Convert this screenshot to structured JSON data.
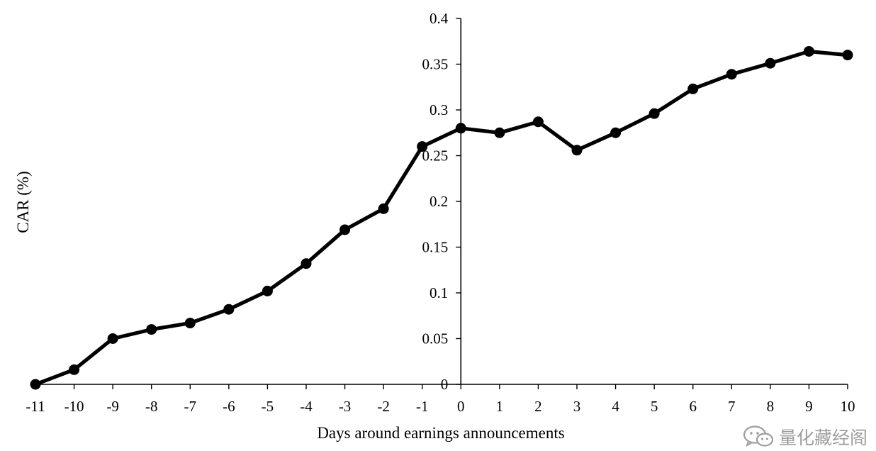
{
  "chart_data": {
    "type": "line",
    "title": "",
    "xlabel": "Days around earnings announcements",
    "ylabel": "CAR (%)",
    "x": [
      -11,
      -10,
      -9,
      -8,
      -7,
      -6,
      -5,
      -4,
      -3,
      -2,
      -1,
      0,
      1,
      2,
      3,
      4,
      5,
      6,
      7,
      8,
      9,
      10
    ],
    "x_tick_labels": [
      "-11",
      "-10",
      "-9",
      "-8",
      "-7",
      "-6",
      "-5",
      "-4",
      "-3",
      "-2",
      "-1",
      "0",
      "1",
      "2",
      "3",
      "4",
      "5",
      "6",
      "7",
      "8",
      "9",
      "10"
    ],
    "series": [
      {
        "name": "CAR",
        "values": [
          0.0,
          0.016,
          0.05,
          0.06,
          0.067,
          0.082,
          0.102,
          0.132,
          0.169,
          0.192,
          0.26,
          0.28,
          0.275,
          0.287,
          0.256,
          0.275,
          0.296,
          0.323,
          0.339,
          0.351,
          0.364,
          0.36
        ],
        "color": "#000000",
        "marker": "circle"
      }
    ],
    "xlim": [
      -11,
      10
    ],
    "ylim": [
      0,
      0.4
    ],
    "y_ticks": [
      0,
      0.05,
      0.1,
      0.15,
      0.2,
      0.25,
      0.3,
      0.35,
      0.4
    ],
    "y_tick_labels": [
      "0",
      "0.05",
      "0.1",
      "0.15",
      "0.2",
      "0.25",
      "0.3",
      "0.35",
      "0.4"
    ],
    "y_axis_at_x": 0,
    "grid": false,
    "legend": "none"
  },
  "watermark": {
    "text": "量化藏经阁",
    "icon": "wechat-icon"
  }
}
